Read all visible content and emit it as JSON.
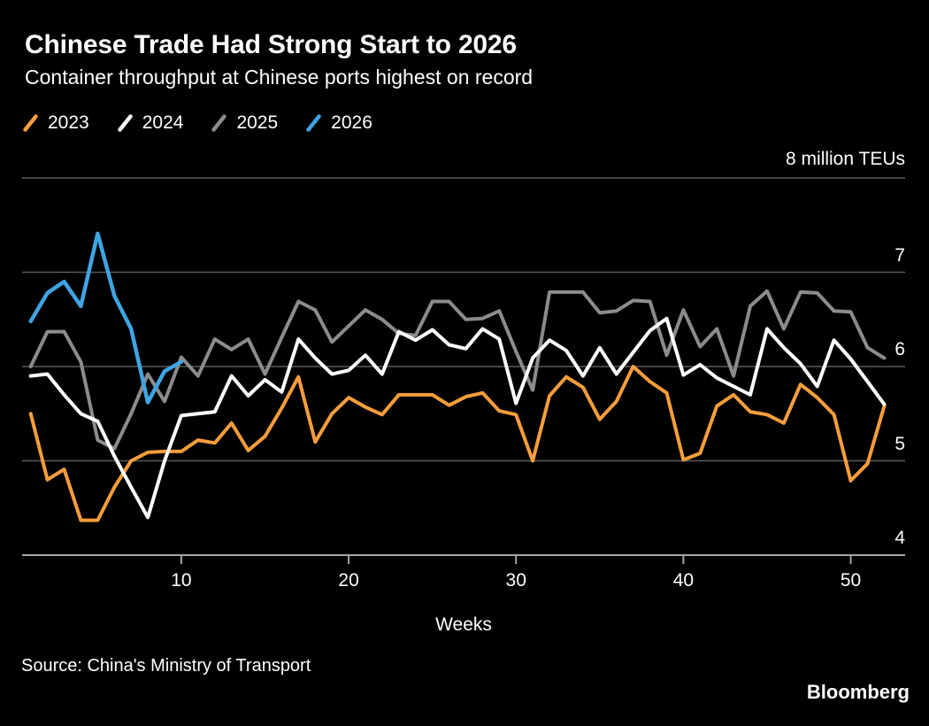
{
  "header": {
    "title": "Chinese Trade Had Strong Start to 2026",
    "subtitle": "Container throughput at Chinese ports highest on record"
  },
  "legend": {
    "items": [
      {
        "label": "2023",
        "color": "#F79D3C"
      },
      {
        "label": "2024",
        "color": "#FFFFFF"
      },
      {
        "label": "2025",
        "color": "#8C8C8C"
      },
      {
        "label": "2026",
        "color": "#3FA4E2"
      }
    ]
  },
  "chart": {
    "unit_label": "8 million TEUs",
    "xlabel": "Weeks"
  },
  "chart_data": {
    "type": "line",
    "title": "Chinese Trade Had Strong Start to 2026",
    "subtitle": "Container throughput at Chinese ports highest on record",
    "xlabel": "Weeks",
    "ylabel": "million TEUs",
    "xlim": [
      1,
      52
    ],
    "ylim": [
      4,
      8
    ],
    "x_ticks": [
      10,
      20,
      30,
      40,
      50
    ],
    "y_ticks": [
      7,
      6,
      5,
      4
    ],
    "top_axis_label": "8 million TEUs",
    "grid": "horizontal",
    "legend_position": "top-left",
    "x_is_week_of_year": true,
    "series": [
      {
        "name": "2023",
        "color": "#F79D3C",
        "values": [
          5.5,
          4.8,
          4.91,
          4.37,
          4.37,
          4.72,
          5.0,
          5.09,
          5.1,
          5.1,
          5.22,
          5.19,
          5.4,
          5.11,
          5.26,
          5.56,
          5.89,
          5.2,
          5.5,
          5.67,
          5.57,
          5.49,
          5.7,
          5.7,
          5.7,
          5.59,
          5.68,
          5.72,
          5.53,
          5.49,
          5.0,
          5.69,
          5.89,
          5.78,
          5.44,
          5.63,
          6.0,
          5.84,
          5.72,
          5.01,
          5.08,
          5.58,
          5.7,
          5.52,
          5.49,
          5.4,
          5.81,
          5.67,
          5.49,
          4.79,
          4.97,
          5.58
        ]
      },
      {
        "name": "2024",
        "color": "#FFFFFF",
        "values": [
          5.9,
          5.92,
          5.7,
          5.5,
          5.42,
          5.05,
          4.72,
          4.4,
          5.0,
          5.48,
          5.5,
          5.52,
          5.9,
          5.69,
          5.86,
          5.73,
          6.29,
          6.09,
          5.92,
          5.96,
          6.12,
          5.92,
          6.37,
          6.28,
          6.39,
          6.23,
          6.19,
          6.4,
          6.29,
          5.61,
          6.09,
          6.28,
          6.17,
          5.9,
          6.2,
          5.92,
          6.15,
          6.38,
          6.51,
          5.91,
          6.02,
          5.88,
          5.79,
          5.7,
          6.4,
          6.2,
          6.03,
          5.79,
          6.28,
          6.08,
          5.84,
          5.6
        ]
      },
      {
        "name": "2025",
        "color": "#8C8C8C",
        "values": [
          6.0,
          6.37,
          6.37,
          6.05,
          5.22,
          5.13,
          5.5,
          5.92,
          5.63,
          6.1,
          5.9,
          6.29,
          6.18,
          6.29,
          5.92,
          6.31,
          6.69,
          6.6,
          6.26,
          6.43,
          6.6,
          6.5,
          6.35,
          6.33,
          6.69,
          6.69,
          6.5,
          6.51,
          6.59,
          6.16,
          5.75,
          6.79,
          6.79,
          6.79,
          6.57,
          6.59,
          6.7,
          6.69,
          6.12,
          6.6,
          6.21,
          6.4,
          5.9,
          6.64,
          6.8,
          6.4,
          6.79,
          6.78,
          6.59,
          6.58,
          6.2,
          6.09
        ]
      },
      {
        "name": "2026",
        "color": "#3FA4E2",
        "values": [
          6.48,
          6.78,
          6.9,
          6.64,
          7.41,
          6.75,
          6.4,
          5.62,
          5.95,
          6.05
        ]
      }
    ]
  },
  "footer": {
    "source": "Source: China's Ministry of Transport",
    "brand": "Bloomberg"
  },
  "colors": {
    "background": "#000000",
    "text": "#FFFFFF",
    "gridline": "#5A5A5A",
    "axis": "#A6A6A6"
  }
}
